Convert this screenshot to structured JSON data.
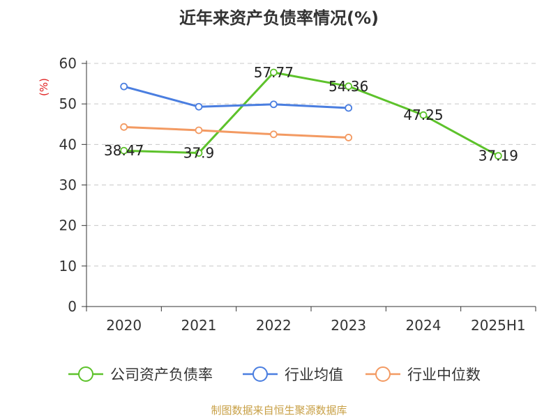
{
  "chart_data": {
    "type": "line",
    "title": "近年来资产负债率情况(%)",
    "ylabel": "(%)",
    "categories": [
      "2020",
      "2021",
      "2022",
      "2023",
      "2024",
      "2025H1"
    ],
    "ylim": [
      0,
      60
    ],
    "yticks": [
      0,
      10,
      20,
      30,
      40,
      50,
      60
    ],
    "grid": true,
    "legend_position": "bottom",
    "series": [
      {
        "name": "公司资产负债率",
        "color": "#5dc22b",
        "values": [
          38.47,
          37.9,
          57.77,
          54.36,
          47.25,
          37.19
        ],
        "labels": [
          "38.47",
          "37.9",
          "57.77",
          "54.36",
          "47.25",
          "37.19"
        ]
      },
      {
        "name": "行业均值",
        "color": "#4a7ee0",
        "values": [
          54.3,
          49.3,
          49.9,
          49.0,
          null,
          null
        ]
      },
      {
        "name": "行业中位数",
        "color": "#f39a62",
        "values": [
          44.3,
          43.5,
          42.5,
          41.7,
          null,
          null
        ]
      }
    ]
  },
  "footer": {
    "source": "制图数据来自恒生聚源数据库"
  }
}
